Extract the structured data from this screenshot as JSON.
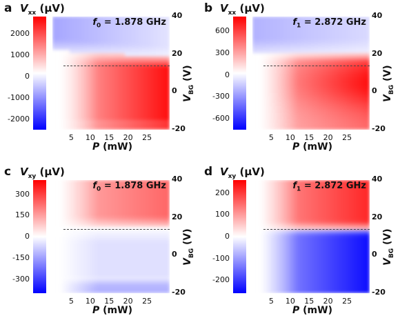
{
  "chart_data": [
    {
      "type": "heatmap",
      "panel": "a",
      "quantity": "V",
      "quantity_sub": "xx",
      "unit": "(μV)",
      "colorbar_ticks": [
        "2000",
        "1000",
        "0",
        "-1000",
        "-2000"
      ],
      "colorbar_range": [
        -2500,
        2800
      ],
      "freq_symbol": "f",
      "freq_sub": "0",
      "freq_value": "= 1.878 GHz",
      "xlabel_symbol": "P",
      "xlabel_unit": "(mW)",
      "xticks": [
        "5",
        "10",
        "15",
        "20",
        "25"
      ],
      "ylabel_symbol": "V",
      "ylabel_sub": "BG",
      "ylabel_unit": "(V)",
      "yticks": [
        "40",
        "20",
        "0",
        "-20"
      ],
      "ylim": [
        -20,
        40
      ],
      "xlim": [
        0,
        31
      ],
      "dashed_line_y": 14,
      "pattern": "xx0",
      "colors": {
        "positive": "#ff0000",
        "zero": "#ffffff",
        "negative": "#0000ff"
      }
    },
    {
      "type": "heatmap",
      "panel": "b",
      "quantity": "V",
      "quantity_sub": "xx",
      "unit": "(μV)",
      "colorbar_ticks": [
        "600",
        "300",
        "0",
        "-300",
        "-600"
      ],
      "colorbar_range": [
        -750,
        800
      ],
      "freq_symbol": "f",
      "freq_sub": "1",
      "freq_value": "= 2.872 GHz",
      "xlabel_symbol": "P",
      "xlabel_unit": "(mW)",
      "xticks": [
        "5",
        "10",
        "15",
        "20",
        "25"
      ],
      "ylabel_symbol": "V",
      "ylabel_sub": "BG",
      "ylabel_unit": "(V)",
      "yticks": [
        "40",
        "20",
        "0",
        "-20"
      ],
      "ylim": [
        -20,
        40
      ],
      "xlim": [
        0,
        31
      ],
      "dashed_line_y": 14,
      "pattern": "xx1",
      "colors": {
        "positive": "#ff0000",
        "zero": "#ffffff",
        "negative": "#0000ff"
      }
    },
    {
      "type": "heatmap",
      "panel": "c",
      "quantity": "V",
      "quantity_sub": "xy",
      "unit": "(μV)",
      "colorbar_ticks": [
        "300",
        "150",
        "0",
        "-150",
        "-300"
      ],
      "colorbar_range": [
        -400,
        400
      ],
      "freq_symbol": "f",
      "freq_sub": "0",
      "freq_value": "= 1.878 GHz",
      "xlabel_symbol": "P",
      "xlabel_unit": "(mW)",
      "xticks": [
        "5",
        "10",
        "15",
        "20",
        "25"
      ],
      "ylabel_symbol": "V",
      "ylabel_sub": "BG",
      "ylabel_unit": "(V)",
      "yticks": [
        "40",
        "20",
        "0",
        "-20"
      ],
      "ylim": [
        -20,
        40
      ],
      "xlim": [
        0,
        31
      ],
      "dashed_line_y": 14,
      "pattern": "xy0",
      "colors": {
        "positive": "#ff0000",
        "zero": "#ffffff",
        "negative": "#0000ff"
      }
    },
    {
      "type": "heatmap",
      "panel": "d",
      "quantity": "V",
      "quantity_sub": "xy",
      "unit": "(μV)",
      "colorbar_ticks": [
        "200",
        "100",
        "0",
        "-100",
        "-200"
      ],
      "colorbar_range": [
        -260,
        260
      ],
      "freq_symbol": "f",
      "freq_sub": "1",
      "freq_value": "= 2.872 GHz",
      "xlabel_symbol": "P",
      "xlabel_unit": "(mW)",
      "xticks": [
        "5",
        "10",
        "15",
        "20",
        "25"
      ],
      "ylabel_symbol": "V",
      "ylabel_sub": "BG",
      "ylabel_unit": "(V)",
      "yticks": [
        "40",
        "20",
        "0",
        "-20"
      ],
      "ylim": [
        -20,
        40
      ],
      "xlim": [
        0,
        31
      ],
      "dashed_line_y": 14,
      "pattern": "xy1",
      "colors": {
        "positive": "#ff0000",
        "zero": "#ffffff",
        "negative": "#0000ff"
      }
    }
  ]
}
